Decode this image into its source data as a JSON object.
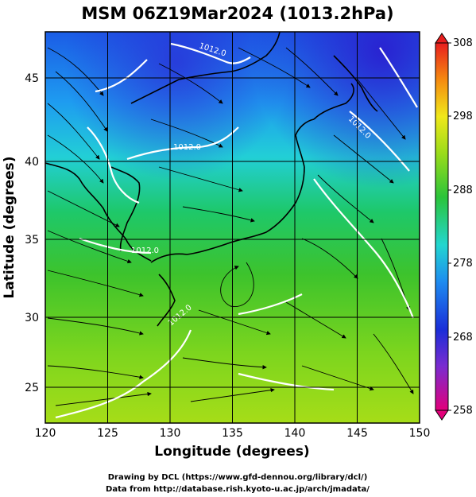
{
  "title": "MSM 06Z19Mar2024 (1013.2hPa)",
  "xlabel": "Longitude (degrees)",
  "ylabel": "Latitude  (degrees)",
  "x_ticks": [
    "120",
    "125",
    "130",
    "135",
    "140",
    "145",
    "150"
  ],
  "y_ticks": [
    "25",
    "30",
    "35",
    "40",
    "45"
  ],
  "colorbar_ticks": [
    "258",
    "268",
    "278",
    "288",
    "298",
    "308"
  ],
  "isobar_labels": [
    "1012.0",
    "1012.0",
    "1012.0",
    "1012.0",
    "1012.0"
  ],
  "credit_line1": "Drawing by DCL (https://www.gfd-dennou.org/library/dcl/)",
  "credit_line2": "Data from http://database.rish.kyoto-u.ac.jp/arch/jmadata/",
  "chart_data": {
    "type": "heatmap",
    "description_fields": "temperature field (K) with streamlines and isobars",
    "xlim": [
      120,
      150
    ],
    "ylim": [
      22.4,
      47.6
    ],
    "colorbar_range": [
      258,
      308
    ],
    "colorbar_ticks": [
      258,
      268,
      278,
      288,
      298,
      308
    ],
    "grid": true
  }
}
